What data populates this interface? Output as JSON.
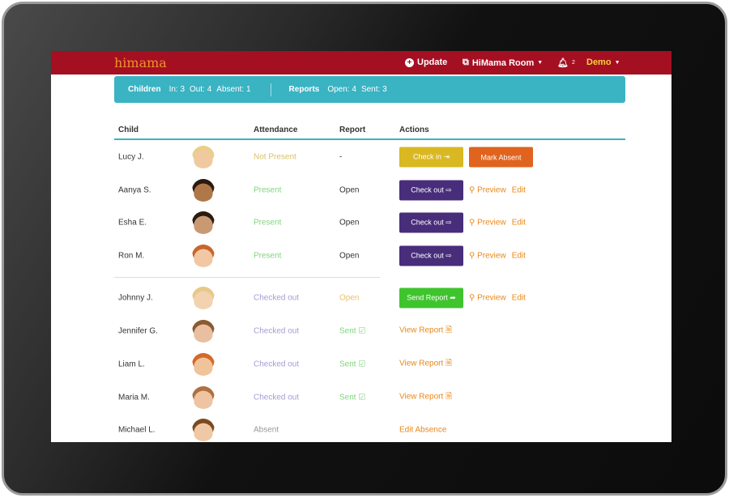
{
  "header": {
    "logo": "himama",
    "update": "Update",
    "room": "HiMama Room",
    "bell_count": "2",
    "user": "Demo"
  },
  "summary": {
    "children_label": "Children",
    "in": "In: 3",
    "out": "Out: 4",
    "absent": "Absent: 1",
    "reports_label": "Reports",
    "open": "Open: 4",
    "sent": "Sent: 3"
  },
  "table": {
    "headers": [
      "Child",
      "Attendance",
      "Report",
      "Actions"
    ],
    "rows": [
      {
        "name": "Lucy J.",
        "attendance": "Not Present",
        "report": "-",
        "actions": [
          "Check in ⇥",
          "Mark Absent"
        ]
      },
      {
        "name": "Aanya S.",
        "attendance": "Present",
        "report": "Open",
        "actions": [
          "Check out ⇨",
          "Preview",
          "Edit"
        ]
      },
      {
        "name": "Esha E.",
        "attendance": "Present",
        "report": "Open",
        "actions": [
          "Check out ⇨",
          "Preview",
          "Edit"
        ]
      },
      {
        "name": "Ron M.",
        "attendance": "Present",
        "report": "Open",
        "actions": [
          "Check out ⇨",
          "Preview",
          "Edit"
        ]
      },
      {
        "name": "Johnny J.",
        "attendance": "Checked out",
        "report": "Open",
        "actions": [
          "Send Report ➦",
          "Preview",
          "Edit"
        ]
      },
      {
        "name": "Jennifer G.",
        "attendance": "Checked out",
        "report": "Sent ☑",
        "actions": [
          "View Report 🗎"
        ]
      },
      {
        "name": "Liam L.",
        "attendance": "Checked out",
        "report": "Sent ☑",
        "actions": [
          "View Report 🗎"
        ]
      },
      {
        "name": "Maria M.",
        "attendance": "Checked out",
        "report": "Sent ☑",
        "actions": [
          "View Report 🗎"
        ]
      },
      {
        "name": "Michael L.",
        "attendance": "Absent",
        "report": "",
        "actions": [
          "Edit Absence"
        ]
      }
    ]
  },
  "colors": {
    "header": "#a50f22",
    "summary": "#3ab3c3",
    "check_in": "#d9b822",
    "mark_absent": "#e0631e",
    "check_out": "#472d7a",
    "send_report": "#3fc42e",
    "link": "#e8891a"
  }
}
